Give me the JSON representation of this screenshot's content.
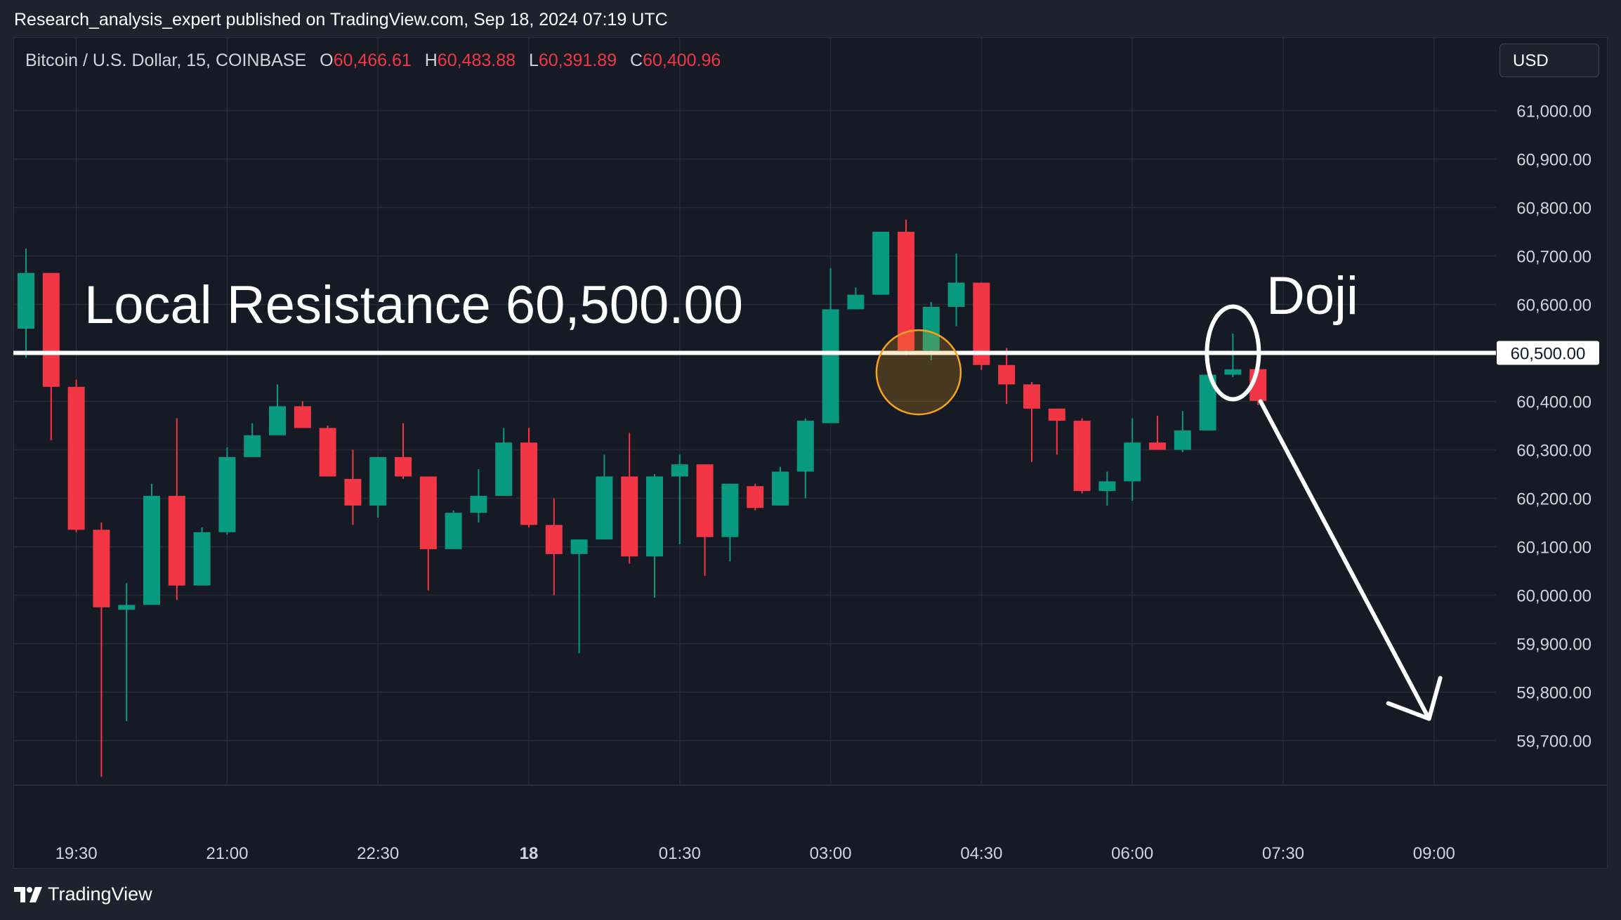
{
  "attribution": "Research_analysis_expert published on TradingView.com, Sep 18, 2024 07:19 UTC",
  "legend": {
    "symbol": "Bitcoin / U.S. Dollar, 15, COINBASE",
    "o_label": "O",
    "o_value": "60,466.61",
    "h_label": "H",
    "h_value": "60,483.88",
    "l_label": "L",
    "l_value": "60,391.89",
    "c_label": "C",
    "c_value": "60,400.96"
  },
  "currency_button": "USD",
  "footer_brand": "TradingView",
  "colors": {
    "up": "#089981",
    "down": "#f23645",
    "background": "#161a25",
    "grid": "#262b37",
    "annotation": "#ffffff",
    "highlight_circle": "#f7a21b"
  },
  "chart_data": {
    "type": "candlestick",
    "interval": "15",
    "y_axis": {
      "range": [
        59610,
        61120
      ],
      "tick_labels": [
        "61,000.00",
        "60,900.00",
        "60,800.00",
        "60,700.00",
        "60,600.00",
        "60,500.00",
        "60,400.00",
        "60,300.00",
        "60,200.00",
        "60,100.00",
        "60,000.00",
        "59,900.00",
        "59,800.00",
        "59,700.00"
      ],
      "tick_values": [
        61000,
        60900,
        60800,
        60700,
        60600,
        60500,
        60400,
        60300,
        60200,
        60100,
        60000,
        59900,
        59800,
        59700
      ]
    },
    "x_axis": {
      "tick_labels": [
        "19:30",
        "21:00",
        "22:30",
        "18",
        "01:30",
        "03:00",
        "04:30",
        "06:00",
        "07:30",
        "09:00"
      ],
      "tick_bars": [
        2,
        8,
        14,
        20,
        26,
        32,
        38,
        44,
        50,
        56
      ],
      "bold_labels": [
        "18"
      ]
    },
    "grid": true,
    "candles": [
      {
        "o": 60550,
        "h": 60715,
        "l": 60490,
        "c": 60665
      },
      {
        "o": 60665,
        "h": 60665,
        "l": 60320,
        "c": 60430
      },
      {
        "o": 60430,
        "h": 60445,
        "l": 60130,
        "c": 60135
      },
      {
        "o": 60135,
        "h": 60150,
        "l": 59625,
        "c": 59975
      },
      {
        "o": 59970,
        "h": 60025,
        "l": 59740,
        "c": 59980
      },
      {
        "o": 59980,
        "h": 60230,
        "l": 59980,
        "c": 60205
      },
      {
        "o": 60205,
        "h": 60365,
        "l": 59990,
        "c": 60020
      },
      {
        "o": 60020,
        "h": 60140,
        "l": 60020,
        "c": 60130
      },
      {
        "o": 60130,
        "h": 60305,
        "l": 60125,
        "c": 60285
      },
      {
        "o": 60285,
        "h": 60355,
        "l": 60285,
        "c": 60330
      },
      {
        "o": 60330,
        "h": 60435,
        "l": 60330,
        "c": 60390
      },
      {
        "o": 60390,
        "h": 60400,
        "l": 60350,
        "c": 60345
      },
      {
        "o": 60345,
        "h": 60350,
        "l": 60245,
        "c": 60245
      },
      {
        "o": 60240,
        "h": 60300,
        "l": 60145,
        "c": 60185
      },
      {
        "o": 60185,
        "h": 60285,
        "l": 60160,
        "c": 60285
      },
      {
        "o": 60285,
        "h": 60355,
        "l": 60240,
        "c": 60245
      },
      {
        "o": 60245,
        "h": 60245,
        "l": 60010,
        "c": 60095
      },
      {
        "o": 60095,
        "h": 60175,
        "l": 60095,
        "c": 60170
      },
      {
        "o": 60170,
        "h": 60260,
        "l": 60150,
        "c": 60205
      },
      {
        "o": 60205,
        "h": 60345,
        "l": 60205,
        "c": 60315
      },
      {
        "o": 60315,
        "h": 60345,
        "l": 60140,
        "c": 60145
      },
      {
        "o": 60145,
        "h": 60200,
        "l": 60000,
        "c": 60085
      },
      {
        "o": 60085,
        "h": 60115,
        "l": 59880,
        "c": 60115
      },
      {
        "o": 60115,
        "h": 60290,
        "l": 60115,
        "c": 60245
      },
      {
        "o": 60245,
        "h": 60335,
        "l": 60065,
        "c": 60080
      },
      {
        "o": 60080,
        "h": 60250,
        "l": 59995,
        "c": 60245
      },
      {
        "o": 60245,
        "h": 60290,
        "l": 60105,
        "c": 60270
      },
      {
        "o": 60270,
        "h": 60270,
        "l": 60040,
        "c": 60120
      },
      {
        "o": 60120,
        "h": 60230,
        "l": 60070,
        "c": 60230
      },
      {
        "o": 60225,
        "h": 60230,
        "l": 60175,
        "c": 60180
      },
      {
        "o": 60185,
        "h": 60265,
        "l": 60185,
        "c": 60255
      },
      {
        "o": 60255,
        "h": 60365,
        "l": 60200,
        "c": 60360
      },
      {
        "o": 60355,
        "h": 60675,
        "l": 60355,
        "c": 60590
      },
      {
        "o": 60590,
        "h": 60635,
        "l": 60590,
        "c": 60620
      },
      {
        "o": 60620,
        "h": 60750,
        "l": 60620,
        "c": 60750
      },
      {
        "o": 60750,
        "h": 60775,
        "l": 60495,
        "c": 60505
      },
      {
        "o": 60505,
        "h": 60605,
        "l": 60485,
        "c": 60595
      },
      {
        "o": 60595,
        "h": 60705,
        "l": 60555,
        "c": 60645
      },
      {
        "o": 60645,
        "h": 60645,
        "l": 60465,
        "c": 60475
      },
      {
        "o": 60475,
        "h": 60510,
        "l": 60395,
        "c": 60435
      },
      {
        "o": 60435,
        "h": 60440,
        "l": 60275,
        "c": 60385
      },
      {
        "o": 60385,
        "h": 60385,
        "l": 60290,
        "c": 60360
      },
      {
        "o": 60360,
        "h": 60365,
        "l": 60210,
        "c": 60215
      },
      {
        "o": 60215,
        "h": 60255,
        "l": 60185,
        "c": 60235
      },
      {
        "o": 60235,
        "h": 60365,
        "l": 60195,
        "c": 60315
      },
      {
        "o": 60315,
        "h": 60370,
        "l": 60300,
        "c": 60300
      },
      {
        "o": 60300,
        "h": 60380,
        "l": 60295,
        "c": 60340
      },
      {
        "o": 60340,
        "h": 60455,
        "l": 60340,
        "c": 60455
      },
      {
        "o": 60455,
        "h": 60540,
        "l": 60450,
        "c": 60466
      },
      {
        "o": 60466.61,
        "h": 60483.88,
        "l": 60391.89,
        "c": 60400.96
      }
    ],
    "annotations": {
      "resistance_value": 60500,
      "resistance_text": "Local Resistance 60,500.00",
      "resistance_price_label": "60,500.00",
      "doji_text": "Doji",
      "highlight_circle_price": 60460,
      "highlight_circle_bar": 35.5,
      "doji_ellipse_bar": 48,
      "doji_ellipse_price": 60500,
      "arrow_from": {
        "bar": 49.1,
        "price": 60400
      },
      "arrow_to": {
        "bar": 55.8,
        "price": 59745
      }
    }
  }
}
